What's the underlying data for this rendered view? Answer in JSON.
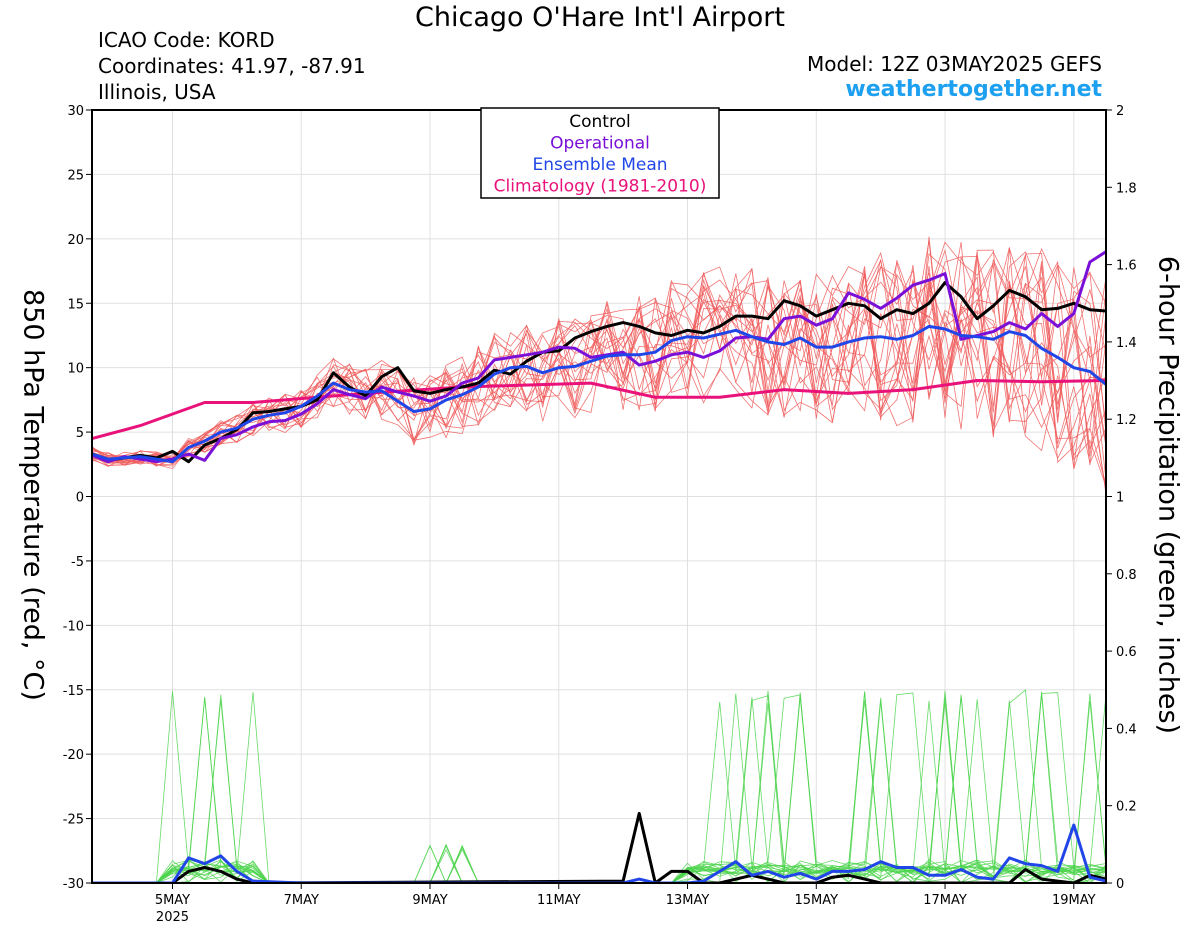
{
  "header": {
    "title": "Chicago O'Hare Int'l Airport",
    "icao": "ICAO Code: KORD",
    "coords": "Coordinates: 41.97, -87.91",
    "location": "Illinois, USA",
    "model": "Model: 12Z 03MAY2025 GEFS",
    "website": "weathertogether.net"
  },
  "colors": {
    "members_temp": "#f05a5a",
    "members_precip": "#4cd44c",
    "control": "#000000",
    "operational": "#7a10d8",
    "ensemble_mean": "#2146e8",
    "climatology": "#e8127a",
    "website": "#1ea0f0"
  },
  "chart_data": {
    "type": "line",
    "xlabel": "",
    "x_unit": "days since 00Z 05MAY2025",
    "x_range": [
      -1.25,
      14.5
    ],
    "x_ticks": [
      {
        "x": 0,
        "label": "5MAY",
        "sub": "2025"
      },
      {
        "x": 2,
        "label": "7MAY"
      },
      {
        "x": 4,
        "label": "9MAY"
      },
      {
        "x": 6,
        "label": "11MAY"
      },
      {
        "x": 8,
        "label": "13MAY"
      },
      {
        "x": 10,
        "label": "15MAY"
      },
      {
        "x": 12,
        "label": "17MAY"
      },
      {
        "x": 14,
        "label": "19MAY"
      }
    ],
    "ylabel_left": "850 hPa Temperature (red, °C)",
    "ylabel_right": "6-hour Precipitation (green, inches)",
    "ylim_left": [
      -30,
      30
    ],
    "ylim_right": [
      0,
      2
    ],
    "y_ticks_left": [
      30,
      25,
      20,
      15,
      10,
      5,
      0,
      -5,
      -10,
      -15,
      -20,
      -25,
      -30
    ],
    "y_ticks_right": [
      "2",
      "1.8",
      "1.6",
      "1.4",
      "1.2",
      "1",
      "0.8",
      "0.6",
      "0.4",
      "0.2",
      "0"
    ],
    "legend": {
      "position": "top-center",
      "entries": [
        "Control",
        "Operational",
        "Ensemble Mean",
        "Climatology (1981-2010)"
      ]
    },
    "series": [
      {
        "name": "Climatology (1981-2010)",
        "axis": "left",
        "x": [
          -1.25,
          -0.5,
          0.5,
          1.25,
          3,
          4.5,
          6.5,
          7.5,
          8.5,
          9.5,
          10.5,
          11.5,
          12.5,
          13.5,
          14.5
        ],
        "values": [
          4.5,
          5.5,
          7.3,
          7.3,
          8,
          8.5,
          8.8,
          7.7,
          7.7,
          8.3,
          8,
          8.3,
          9,
          8.9,
          9
        ]
      },
      {
        "name": "Control",
        "axis": "left",
        "x": [
          -1.25,
          -1,
          -0.75,
          -0.5,
          -0.25,
          0,
          0.25,
          0.5,
          0.75,
          1,
          1.25,
          1.5,
          1.75,
          2,
          2.25,
          2.5,
          2.75,
          3,
          3.25,
          3.5,
          3.75,
          4,
          4.25,
          4.5,
          4.75,
          5,
          5.25,
          5.5,
          5.75,
          6,
          6.25,
          6.5,
          6.75,
          7,
          7.25,
          7.5,
          7.75,
          8,
          8.25,
          8.5,
          8.75,
          9,
          9.25,
          9.5,
          9.75,
          10,
          10.25,
          10.5,
          10.75,
          11,
          11.25,
          11.5,
          11.75,
          12,
          12.25,
          12.5,
          12.75,
          13,
          13.25,
          13.5,
          13.75,
          14,
          14.25,
          14.5
        ],
        "values": [
          3.3,
          2.8,
          3,
          3.2,
          3,
          3.5,
          2.7,
          4,
          4.5,
          5.2,
          6.5,
          6.6,
          6.8,
          7,
          7.5,
          9.6,
          8.5,
          7.8,
          9.3,
          10,
          8.2,
          8,
          8.3,
          8.5,
          8.8,
          9.8,
          9.5,
          10.5,
          11.2,
          11.3,
          12.3,
          12.8,
          13.2,
          13.5,
          13.2,
          12.7,
          12.5,
          12.9,
          12.7,
          13.2,
          14,
          14,
          13.8,
          15.2,
          14.8,
          14,
          14.5,
          15,
          14.8,
          13.8,
          14.5,
          14.2,
          15,
          16.6,
          15.5,
          13.8,
          14.8,
          16,
          15.5,
          14.5,
          14.6,
          15,
          14.5,
          14.4
        ]
      },
      {
        "name": "Operational",
        "axis": "left",
        "x": [
          -1.25,
          -1,
          -0.75,
          -0.5,
          -0.25,
          0,
          0.25,
          0.5,
          0.75,
          1,
          1.25,
          1.5,
          1.75,
          2,
          2.25,
          2.5,
          2.75,
          3,
          3.25,
          3.5,
          3.75,
          4,
          4.25,
          4.5,
          4.75,
          5,
          5.25,
          5.5,
          5.75,
          6,
          6.25,
          6.5,
          6.75,
          7,
          7.25,
          7.5,
          7.75,
          8,
          8.25,
          8.5,
          8.75,
          9,
          9.25,
          9.5,
          9.75,
          10,
          10.25,
          10.5,
          10.75,
          11,
          11.25,
          11.5,
          11.75,
          12,
          12.25,
          12.5,
          12.75,
          13,
          13.25,
          13.5,
          13.75,
          14,
          14.25,
          14.5
        ],
        "values": [
          3.2,
          2.7,
          3.1,
          2.9,
          2.7,
          2.9,
          3.3,
          2.8,
          4.5,
          4.8,
          5.4,
          5.8,
          5.9,
          6.4,
          7.2,
          8.3,
          7.9,
          7.6,
          8.5,
          8.1,
          7.8,
          7.4,
          7.8,
          8.8,
          9.2,
          10.6,
          10.8,
          11,
          11.2,
          11.6,
          11.5,
          10.8,
          11,
          11.2,
          10.2,
          10.5,
          11,
          11.2,
          10.8,
          11.3,
          12.3,
          12.4,
          12.2,
          13.8,
          14,
          13.3,
          13.8,
          15.8,
          15.3,
          14.6,
          15.4,
          16.4,
          16.8,
          17.3,
          12.2,
          12.5,
          12.8,
          13.5,
          13,
          14.2,
          13.2,
          14.2,
          18.2,
          19
        ]
      },
      {
        "name": "Ensemble Mean",
        "axis": "left",
        "x": [
          -1.25,
          -1,
          -0.75,
          -0.5,
          -0.25,
          0,
          0.25,
          0.5,
          0.75,
          1,
          1.25,
          1.5,
          1.75,
          2,
          2.25,
          2.5,
          2.75,
          3,
          3.25,
          3.5,
          3.75,
          4,
          4.25,
          4.5,
          4.75,
          5,
          5.25,
          5.5,
          5.75,
          6,
          6.25,
          6.5,
          6.75,
          7,
          7.25,
          7.5,
          7.75,
          8,
          8.25,
          8.5,
          8.75,
          9,
          9.25,
          9.5,
          9.75,
          10,
          10.25,
          10.5,
          10.75,
          11,
          11.25,
          11.5,
          11.75,
          12,
          12.25,
          12.5,
          12.75,
          13,
          13.25,
          13.5,
          13.75,
          14,
          14.25,
          14.5
        ],
        "values": [
          3.3,
          2.9,
          3,
          3.1,
          2.9,
          2.7,
          3.8,
          4.3,
          5,
          5.3,
          6,
          6.3,
          6.5,
          7,
          7.8,
          8.8,
          8.3,
          8.1,
          8.2,
          7.4,
          6.6,
          6.8,
          7.5,
          7.9,
          8.5,
          9.5,
          10,
          10.1,
          9.6,
          10,
          10.1,
          10.5,
          10.9,
          11,
          11,
          11.2,
          12.1,
          12.4,
          12.3,
          12.6,
          12.9,
          12.4,
          12,
          11.8,
          12.3,
          11.6,
          11.6,
          12,
          12.3,
          12.4,
          12.2,
          12.5,
          13.2,
          13,
          12.5,
          12.4,
          12.2,
          12.8,
          12.5,
          11.5,
          10.8,
          10,
          9.7,
          8.7
        ]
      },
      {
        "name": "Control precipitation",
        "axis": "right",
        "x": [
          -1.25,
          0,
          0.25,
          0.5,
          0.75,
          1,
          1.25,
          7,
          7.25,
          7.5,
          7.75,
          8,
          8.25,
          8.5,
          9,
          9.25,
          9.5,
          9.75,
          10,
          10.25,
          10.5,
          10.75,
          11,
          11.5,
          12,
          12.5,
          12.75,
          13,
          13.25,
          13.5,
          13.75,
          14,
          14.25,
          14.5
        ],
        "values": [
          0,
          0,
          0.03,
          0.04,
          0.03,
          0.01,
          0,
          0.005,
          0.18,
          0,
          0.03,
          0.03,
          0,
          0,
          0.02,
          0.01,
          0,
          0,
          0,
          0.015,
          0.02,
          0.01,
          0,
          0,
          0,
          0,
          0,
          0,
          0.035,
          0.01,
          0.005,
          0,
          0.02,
          0.01
        ]
      },
      {
        "name": "Ensemble mean precipitation",
        "axis": "right",
        "x": [
          -1.25,
          0,
          0.25,
          0.5,
          0.75,
          1,
          1.25,
          2,
          3,
          4,
          5,
          6,
          7,
          7.25,
          7.5,
          8,
          8.25,
          8.5,
          8.75,
          9,
          9.25,
          9.5,
          9.75,
          10,
          10.25,
          10.5,
          10.75,
          11,
          11.25,
          11.5,
          11.75,
          12,
          12.25,
          12.5,
          12.75,
          13,
          13.25,
          13.5,
          13.75,
          14,
          14.25,
          14.5
        ],
        "values": [
          0,
          0,
          0.065,
          0.05,
          0.07,
          0.03,
          0.005,
          0,
          0,
          0,
          0,
          0,
          0,
          0.01,
          0,
          0,
          0.005,
          0.03,
          0.055,
          0.02,
          0.03,
          0.015,
          0.025,
          0.01,
          0.03,
          0.03,
          0.035,
          0.055,
          0.04,
          0.04,
          0.02,
          0.02,
          0.035,
          0.015,
          0.01,
          0.065,
          0.05,
          0.045,
          0.03,
          0.15,
          0.015,
          0.005
        ]
      }
    ]
  }
}
